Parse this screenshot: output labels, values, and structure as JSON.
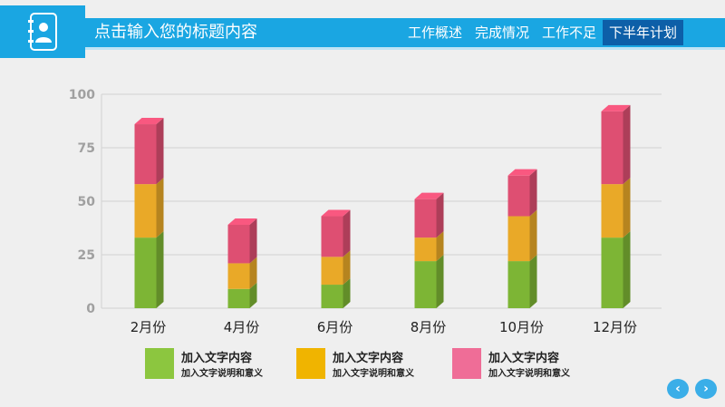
{
  "header": {
    "title": "点击输入您的标题内容",
    "logo_icon": "contact-book-icon",
    "nav": [
      {
        "label": "工作概述",
        "active": false
      },
      {
        "label": "完成情况",
        "active": false
      },
      {
        "label": "工作不足",
        "active": false
      },
      {
        "label": "下半年计划",
        "active": true
      }
    ]
  },
  "legend": [
    {
      "title": "加入文字内容",
      "desc": "加入文字说明和意义",
      "color": "#8cc63f"
    },
    {
      "title": "加入文字内容",
      "desc": "加入文字说明和意义",
      "color": "#f0b400"
    },
    {
      "title": "加入文字内容",
      "desc": "加入文字说明和意义",
      "color": "#ef6d97"
    }
  ],
  "footer": {
    "prev_icon": "chevron-left-icon",
    "next_icon": "chevron-right-icon"
  },
  "chart_data": {
    "type": "bar",
    "stacked": true,
    "style": "3d",
    "categories": [
      "2月份",
      "4月份",
      "6月份",
      "8月份",
      "10月份",
      "12月份"
    ],
    "series": [
      {
        "values": [
          33,
          9,
          11,
          22,
          22,
          33
        ],
        "color": "#7db535"
      },
      {
        "values": [
          25,
          12,
          13,
          11,
          21,
          25
        ],
        "color": "#e9a928"
      },
      {
        "values": [
          28,
          18,
          19,
          18,
          19,
          34
        ],
        "color": "#de4f72"
      }
    ],
    "ylim": [
      0,
      100
    ],
    "yticks": [
      0,
      25,
      50,
      75,
      100
    ],
    "grid": true
  }
}
